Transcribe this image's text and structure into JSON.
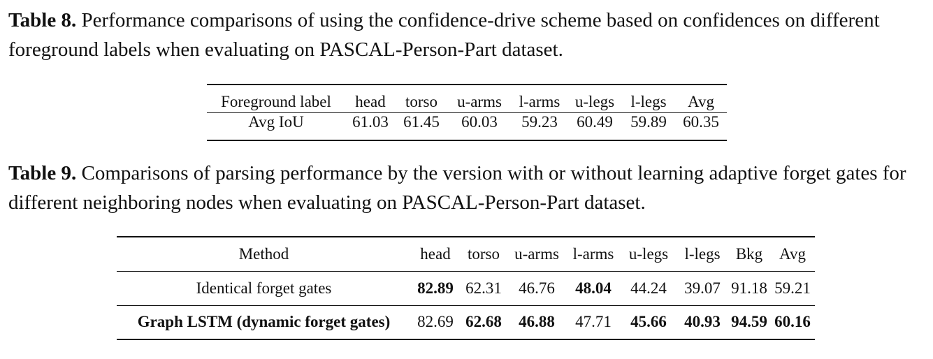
{
  "table8": {
    "caption_label": "Table 8.",
    "caption_text": " Performance comparisons of using the confidence-drive scheme based on confidences on different foreground labels when evaluating on PASCAL-Person-Part dataset.",
    "headers": [
      "Foreground label",
      "head",
      "torso",
      "u-arms",
      "l-arms",
      "u-legs",
      "l-legs",
      "Avg"
    ],
    "row": [
      "Avg IoU",
      "61.03",
      "61.45",
      "60.03",
      "59.23",
      "60.49",
      "59.89",
      "60.35"
    ]
  },
  "table9": {
    "caption_label": "Table 9.",
    "caption_text": " Comparisons of parsing performance by the version with or without learning adaptive forget gates for different neighboring nodes when evaluating on PASCAL-Person-Part dataset.",
    "headers": [
      "Method",
      "head",
      "torso",
      "u-arms",
      "l-arms",
      "u-legs",
      "l-legs",
      "Bkg",
      "Avg"
    ],
    "rows": [
      [
        "Identical forget gates",
        "82.89",
        "62.31",
        "46.76",
        "48.04",
        "44.24",
        "39.07",
        "91.18",
        "59.21"
      ],
      [
        "Graph LSTM (dynamic forget gates)",
        "82.69",
        "62.68",
        "46.88",
        "47.71",
        "45.66",
        "40.93",
        "94.59",
        "60.16"
      ]
    ]
  }
}
